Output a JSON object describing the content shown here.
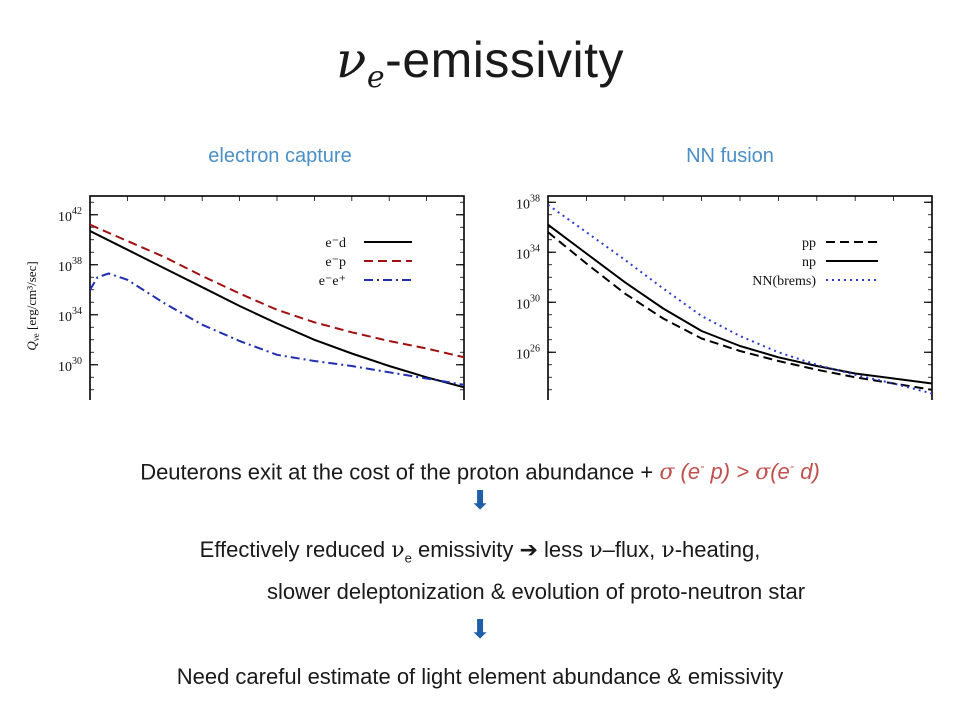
{
  "slide": {
    "title_symbol": "ν",
    "title_sub": "e",
    "title_rest": "-emissivity",
    "label_left": "electron capture",
    "label_right": "NN fusion"
  },
  "text": {
    "line1_prefix": "Deuterons exit at the cost of the proton abundance + ",
    "line1_sigma1": "σ",
    "line1_ep_a": " (e",
    "line1_ep_sup": "-",
    "line1_ep_b": " p) > ",
    "line1_sigma2": "σ",
    "line1_ed_a": "(e",
    "line1_ed_sup": "-",
    "line1_ed_b": " d)",
    "arrow": "⬇",
    "line2_a": "Effectively reduced ",
    "line2_nu": "ν",
    "line2_e": "e",
    "line2_b": " emissivity ",
    "line2_arrow": "➔",
    "line2_c": " less ",
    "line2_nu2": "ν",
    "line2_d": "–flux, ",
    "line2_nu3": "ν",
    "line2_e2": "-heating,",
    "line3": "slower deleptonization & evolution of proto-neutron star",
    "line4": "Need careful estimate of light element abundance & emissivity"
  },
  "chart_data": [
    {
      "type": "line",
      "title": "electron capture",
      "ylabel_main": "Q",
      "ylabel_sub": "νe",
      "ylabel_unit": "[erg/cm³/sec]",
      "y_scale": "log",
      "y_range_exp": [
        27.5,
        43.5
      ],
      "y_ticks": [
        {
          "base": "10",
          "exp": "42",
          "value": 42
        },
        {
          "base": "10",
          "exp": "38",
          "value": 38
        },
        {
          "base": "10",
          "exp": "34",
          "value": 34
        },
        {
          "base": "10",
          "exp": "30",
          "value": 30
        }
      ],
      "x_range": [
        0,
        1
      ],
      "legend_position": "top-right",
      "series": [
        {
          "name": "e⁻d",
          "color": "#000000",
          "dash": "solid",
          "x": [
            0.0,
            0.1,
            0.2,
            0.3,
            0.4,
            0.5,
            0.6,
            0.7,
            0.8,
            0.9,
            1.0
          ],
          "y": [
            40.7,
            39.2,
            37.7,
            36.2,
            34.7,
            33.3,
            32.0,
            30.9,
            29.9,
            29.0,
            28.2
          ]
        },
        {
          "name": "e⁻p",
          "color": "#a01010",
          "dash": "dashed",
          "x": [
            0.0,
            0.1,
            0.2,
            0.3,
            0.4,
            0.5,
            0.6,
            0.7,
            0.8,
            0.9,
            1.0
          ],
          "y": [
            41.2,
            39.9,
            38.6,
            37.1,
            35.7,
            34.4,
            33.4,
            32.6,
            31.9,
            31.3,
            30.6
          ]
        },
        {
          "name": "e⁻e⁺",
          "color": "#1f2fb0",
          "dash": "dashdot",
          "x": [
            0.0,
            0.02,
            0.05,
            0.1,
            0.2,
            0.3,
            0.4,
            0.5,
            0.6,
            0.7,
            0.8,
            0.9,
            1.0
          ],
          "y": [
            36.0,
            37.0,
            37.3,
            36.8,
            34.9,
            33.2,
            31.9,
            30.8,
            30.3,
            29.9,
            29.4,
            28.9,
            28.4
          ]
        }
      ]
    },
    {
      "type": "line",
      "title": "NN fusion",
      "y_scale": "log",
      "y_range_exp": [
        22.5,
        38.5
      ],
      "y_ticks": [
        {
          "base": "10",
          "exp": "38",
          "value": 38
        },
        {
          "base": "10",
          "exp": "34",
          "value": 34
        },
        {
          "base": "10",
          "exp": "30",
          "value": 30
        },
        {
          "base": "10",
          "exp": "26",
          "value": 26
        }
      ],
      "x_range": [
        0,
        1
      ],
      "legend_position": "top-right",
      "series": [
        {
          "name": "pp",
          "color": "#000000",
          "dash": "dashed",
          "x": [
            0.0,
            0.1,
            0.2,
            0.3,
            0.4,
            0.5,
            0.6,
            0.7,
            0.8,
            0.9,
            1.0
          ],
          "y": [
            35.6,
            33.1,
            30.7,
            28.7,
            27.1,
            26.1,
            25.3,
            24.6,
            24.0,
            23.5,
            23.0
          ]
        },
        {
          "name": "np",
          "color": "#000000",
          "dash": "solid",
          "x": [
            0.0,
            0.1,
            0.2,
            0.3,
            0.4,
            0.5,
            0.6,
            0.7,
            0.8,
            0.9,
            1.0
          ],
          "y": [
            36.2,
            33.9,
            31.6,
            29.5,
            27.7,
            26.5,
            25.6,
            24.9,
            24.3,
            23.9,
            23.5
          ]
        },
        {
          "name": "NN(brems)",
          "color": "#2a3ad0",
          "dash": "dotted",
          "x": [
            0.0,
            0.1,
            0.2,
            0.3,
            0.4,
            0.5,
            0.6,
            0.7,
            0.8,
            0.9,
            1.0
          ],
          "y": [
            37.8,
            35.6,
            33.4,
            31.1,
            28.9,
            27.3,
            26.0,
            25.0,
            24.2,
            23.5,
            22.7
          ]
        }
      ]
    }
  ]
}
